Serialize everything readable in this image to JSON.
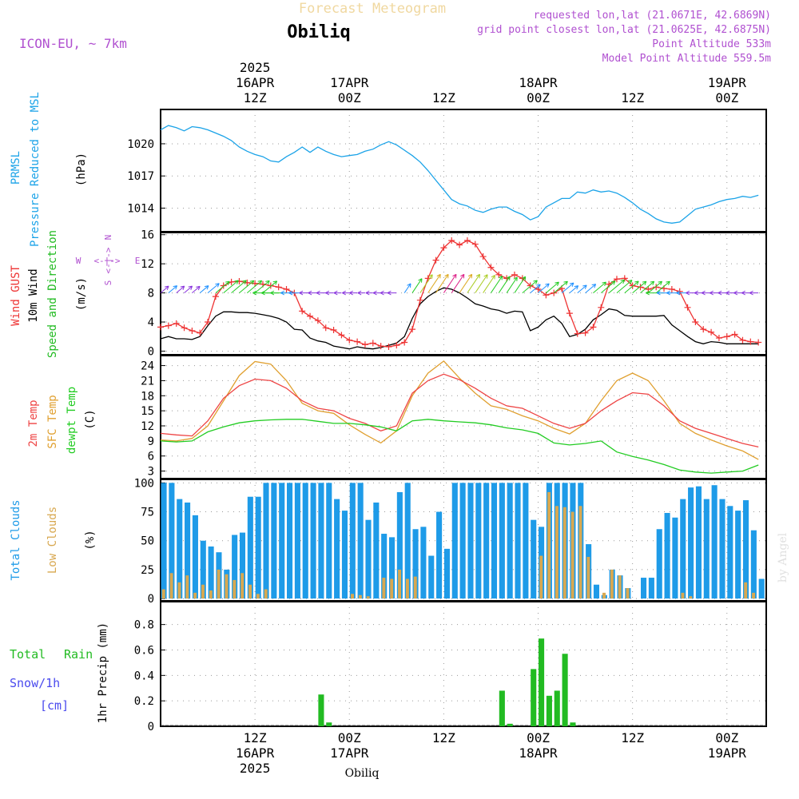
{
  "header": {
    "title": "Forecast Meteogram",
    "station": "Obiliq",
    "model": "ICON-EU, ~ 7km",
    "requested": "requested lon,lat (21.0671E, 42.6869N)",
    "gridpoint": "grid point closest lon,lat (21.0625E, 42.6875N)",
    "point_altitude": "Point Altitude 533m",
    "model_altitude": "Model Point Altitude 559.5m",
    "credit": "by Angel",
    "footer_station": "Obiliq"
  },
  "colors": {
    "pressure": "#1ba3e8",
    "wind_gust": "#ee3333",
    "wind_speed": "#000000",
    "temp": "#ee4444",
    "sfc_temp": "#e0a030",
    "dewpt": "#22cc22",
    "total_clouds": "#1e9be8",
    "low_clouds": "#d8a850",
    "rain": "#22bb22",
    "snow": "#4a4aee",
    "title": "#f0d8a0",
    "meta": "#b050d0"
  },
  "time_axis": {
    "top": [
      {
        "h": 12,
        "lines": [
          "2025",
          "16APR",
          "12Z"
        ]
      },
      {
        "h": 24,
        "lines": [
          "17APR",
          "00Z"
        ]
      },
      {
        "h": 36,
        "lines": [
          "12Z"
        ]
      },
      {
        "h": 48,
        "lines": [
          "18APR",
          "00Z"
        ]
      },
      {
        "h": 60,
        "lines": [
          "12Z"
        ]
      },
      {
        "h": 72,
        "lines": [
          "19APR",
          "00Z"
        ]
      }
    ],
    "bottom": [
      {
        "h": 12,
        "lines": [
          "12Z",
          "16APR",
          "2025"
        ]
      },
      {
        "h": 24,
        "lines": [
          "00Z",
          "17APR"
        ]
      },
      {
        "h": 36,
        "lines": [
          "12Z"
        ]
      },
      {
        "h": 48,
        "lines": [
          "00Z",
          "18APR"
        ]
      },
      {
        "h": 60,
        "lines": [
          "12Z"
        ]
      },
      {
        "h": 72,
        "lines": [
          "00Z",
          "19APR"
        ]
      }
    ],
    "note": "hours since 2025-04-16 00Z; axis spans 0 to 77"
  },
  "labels": {
    "pressure": [
      "PRMSL",
      "Pressure Reduced to MSL"
    ],
    "pressure_unit": "(hPa)",
    "wind": [
      "Wind GUST",
      "10m Wind",
      "Speed and Direction"
    ],
    "wind_unit": "(m/s)",
    "compass": {
      "n": "N",
      "s": "S",
      "w": "W",
      "e": "E",
      "arrows": "<-|->"
    },
    "temp": [
      "2m Temp",
      "SFC Temp",
      "dewpt Temp"
    ],
    "temp_unit": "(C)",
    "clouds": [
      "Total Clouds",
      "Low Clouds"
    ],
    "clouds_unit": "(%)",
    "precip_left": [
      "Total",
      "Rain",
      "Snow/1h",
      "[cm]"
    ],
    "precip_unit": "1hr Precip (mm)"
  },
  "chart_data": [
    {
      "id": "pressure",
      "type": "line",
      "title": "PRMSL Pressure Reduced to MSL",
      "ylabel": "hPa",
      "ylim": [
        1011.8,
        1023.2
      ],
      "yticks": [
        1014,
        1017,
        1020
      ],
      "series": [
        {
          "name": "PRMSL",
          "x": [
            0,
            1,
            2,
            3,
            4,
            5,
            6,
            7,
            8,
            9,
            10,
            11,
            12,
            13,
            14,
            15,
            16,
            17,
            18,
            19,
            20,
            21,
            22,
            23,
            24,
            25,
            26,
            27,
            28,
            29,
            30,
            31,
            32,
            33,
            34,
            35,
            36,
            37,
            38,
            39,
            40,
            41,
            42,
            43,
            44,
            45,
            46,
            47,
            48,
            49,
            50,
            51,
            52,
            53,
            54,
            55,
            56,
            57,
            58,
            59,
            60,
            61,
            62,
            63,
            64,
            65,
            66,
            67,
            68,
            69,
            70,
            71,
            72,
            73,
            74,
            75,
            76
          ],
          "values": [
            1021.3,
            1021.7,
            1021.5,
            1021.2,
            1021.6,
            1021.5,
            1021.3,
            1021.0,
            1020.7,
            1020.3,
            1019.7,
            1019.3,
            1019.0,
            1018.8,
            1018.4,
            1018.3,
            1018.8,
            1019.2,
            1019.7,
            1019.2,
            1019.7,
            1019.3,
            1019.0,
            1018.8,
            1018.9,
            1019.0,
            1019.3,
            1019.5,
            1019.9,
            1020.2,
            1019.9,
            1019.4,
            1018.9,
            1018.3,
            1017.5,
            1016.6,
            1015.7,
            1014.8,
            1014.4,
            1014.2,
            1013.8,
            1013.6,
            1013.9,
            1014.1,
            1014.1,
            1013.7,
            1013.4,
            1012.9,
            1013.2,
            1014.1,
            1014.5,
            1014.9,
            1014.9,
            1015.5,
            1015.4,
            1015.7,
            1015.5,
            1015.6,
            1015.4,
            1015.0,
            1014.5,
            1013.9,
            1013.5,
            1013.0,
            1012.7,
            1012.6,
            1012.7,
            1013.3,
            1013.9,
            1014.1,
            1014.3,
            1014.6,
            1014.8,
            1014.9,
            1015.1,
            1015.0,
            1015.2
          ]
        }
      ]
    },
    {
      "id": "wind",
      "type": "line",
      "title": "Wind GUST / 10m Wind Speed and Direction",
      "ylabel": "m/s",
      "ylim": [
        -0.5,
        16.3
      ],
      "yticks": [
        0,
        4,
        8,
        12,
        16
      ],
      "x": [
        0,
        1,
        2,
        3,
        4,
        5,
        6,
        7,
        8,
        9,
        10,
        11,
        12,
        13,
        14,
        15,
        16,
        17,
        18,
        19,
        20,
        21,
        22,
        23,
        24,
        25,
        26,
        27,
        28,
        29,
        30,
        31,
        32,
        33,
        34,
        35,
        36,
        37,
        38,
        39,
        40,
        41,
        42,
        43,
        44,
        45,
        46,
        47,
        48,
        49,
        50,
        51,
        52,
        53,
        54,
        55,
        56,
        57,
        58,
        59,
        60,
        61,
        62,
        63,
        64,
        65,
        66,
        67,
        68,
        69,
        70,
        71,
        72,
        73,
        74,
        75,
        76
      ],
      "series": [
        {
          "name": "Wind GUST",
          "values": [
            3.3,
            3.5,
            3.8,
            3.2,
            2.8,
            2.5,
            4.0,
            7.5,
            9.0,
            9.5,
            9.6,
            9.4,
            9.3,
            9.2,
            9.0,
            8.8,
            8.5,
            8.0,
            5.5,
            4.8,
            4.2,
            3.2,
            2.9,
            2.2,
            1.5,
            1.3,
            0.9,
            1.1,
            0.7,
            0.6,
            0.8,
            1.2,
            3.0,
            7.0,
            10.0,
            12.5,
            14.2,
            15.2,
            14.6,
            15.2,
            14.7,
            13.0,
            11.5,
            10.5,
            10.0,
            10.5,
            10.0,
            9.0,
            8.5,
            7.7,
            8.0,
            8.6,
            5.2,
            2.4,
            2.5,
            3.3,
            6.0,
            9.2,
            9.9,
            10.0,
            9.0,
            8.8,
            8.5,
            8.8,
            8.6,
            8.5,
            8.2,
            6.0,
            4.0,
            3.0,
            2.6,
            1.8,
            2.0,
            2.3,
            1.5,
            1.3,
            1.2
          ]
        },
        {
          "name": "10m Wind",
          "values": [
            1.7,
            2.0,
            1.7,
            1.7,
            1.6,
            2.0,
            3.5,
            4.8,
            5.4,
            5.4,
            5.3,
            5.3,
            5.2,
            5.0,
            4.8,
            4.5,
            4.0,
            3.0,
            2.9,
            1.8,
            1.4,
            1.2,
            0.7,
            0.5,
            0.3,
            0.6,
            0.4,
            0.3,
            0.5,
            0.8,
            1.1,
            2.0,
            4.5,
            6.5,
            7.5,
            8.2,
            8.7,
            8.5,
            8.0,
            7.3,
            6.5,
            6.2,
            5.8,
            5.6,
            5.2,
            5.5,
            5.4,
            2.8,
            3.3,
            4.3,
            4.8,
            3.8,
            2.0,
            2.3,
            3.0,
            4.3,
            5.0,
            5.8,
            5.6,
            4.9,
            4.8,
            4.8,
            4.8,
            4.8,
            4.9,
            3.6,
            2.8,
            2.0,
            1.3,
            1.0,
            1.3,
            1.2,
            1.0,
            1.0,
            1.0,
            1.0,
            1.0
          ]
        }
      ],
      "direction_arrows": "colored wind direction arrows plotted along the 8 m/s line"
    },
    {
      "id": "temp",
      "type": "line",
      "title": "2m Temp / SFC Temp / dewpt Temp",
      "ylabel": "C",
      "ylim": [
        1.5,
        26
      ],
      "yticks": [
        3,
        6,
        9,
        12,
        15,
        18,
        21,
        24
      ],
      "x": [
        0,
        2,
        4,
        6,
        8,
        10,
        12,
        14,
        16,
        18,
        20,
        22,
        24,
        26,
        28,
        30,
        32,
        34,
        36,
        38,
        40,
        42,
        44,
        46,
        48,
        50,
        52,
        54,
        56,
        58,
        60,
        62,
        64,
        66,
        68,
        70,
        72,
        74,
        76
      ],
      "series": [
        {
          "name": "2m Temp",
          "values": [
            10.5,
            10.2,
            10.0,
            13.0,
            17.5,
            20.0,
            21.3,
            21.0,
            19.5,
            17.0,
            15.5,
            15.0,
            13.5,
            12.5,
            11.0,
            12.0,
            18.5,
            21.0,
            22.3,
            21.2,
            19.5,
            17.5,
            16.0,
            15.5,
            14.0,
            12.5,
            11.5,
            12.5,
            15.0,
            17.0,
            18.6,
            18.3,
            16.0,
            13.0,
            11.5,
            10.5,
            9.5,
            8.5,
            7.8
          ]
        },
        {
          "name": "SFC Temp",
          "values": [
            9.2,
            9.0,
            9.5,
            12.0,
            17.0,
            22.0,
            24.8,
            24.3,
            21.0,
            16.5,
            15.0,
            14.5,
            12.2,
            10.3,
            8.6,
            11.0,
            18.0,
            22.5,
            24.9,
            21.5,
            18.5,
            16.0,
            15.3,
            14.0,
            13.0,
            11.5,
            10.4,
            12.5,
            17.0,
            21.0,
            22.5,
            21.0,
            17.0,
            12.5,
            10.5,
            9.2,
            8.0,
            7.0,
            5.3
          ]
        },
        {
          "name": "dewpt Temp",
          "values": [
            9.0,
            8.8,
            9.0,
            10.8,
            11.8,
            12.6,
            13.0,
            13.2,
            13.3,
            13.3,
            12.9,
            12.5,
            12.5,
            12.2,
            11.8,
            11.0,
            13.0,
            13.3,
            13.0,
            12.8,
            12.6,
            12.2,
            11.6,
            11.2,
            10.5,
            8.6,
            8.2,
            8.5,
            9.0,
            6.8,
            5.9,
            5.2,
            4.3,
            3.2,
            2.8,
            2.6,
            2.8,
            3.0,
            4.2
          ]
        }
      ]
    },
    {
      "id": "clouds",
      "type": "bar",
      "title": "Total Clouds / Low Clouds",
      "ylabel": "%",
      "ylim": [
        -2,
        103
      ],
      "yticks": [
        0,
        25,
        50,
        75,
        100
      ],
      "x": [
        0,
        1,
        2,
        3,
        4,
        5,
        6,
        7,
        8,
        9,
        10,
        11,
        12,
        13,
        14,
        15,
        16,
        17,
        18,
        19,
        20,
        21,
        22,
        23,
        24,
        25,
        26,
        27,
        28,
        29,
        30,
        31,
        32,
        33,
        34,
        35,
        36,
        37,
        38,
        39,
        40,
        41,
        42,
        43,
        44,
        45,
        46,
        47,
        48,
        49,
        50,
        51,
        52,
        53,
        54,
        55,
        56,
        57,
        58,
        59,
        60,
        61,
        62,
        63,
        64,
        65,
        66,
        67,
        68,
        69,
        70,
        71,
        72,
        73,
        74,
        75,
        76
      ],
      "series": [
        {
          "name": "Total Clouds",
          "values": [
            100,
            100,
            86,
            83,
            72,
            50,
            45,
            40,
            25,
            55,
            57,
            88,
            88,
            100,
            100,
            100,
            100,
            100,
            100,
            100,
            100,
            100,
            86,
            76,
            100,
            100,
            68,
            83,
            56,
            53,
            92,
            100,
            60,
            62,
            37,
            75,
            43,
            100,
            100,
            100,
            100,
            100,
            100,
            100,
            100,
            100,
            100,
            68,
            62,
            100,
            100,
            100,
            100,
            100,
            47,
            12,
            3,
            25,
            20,
            9,
            0,
            18,
            18,
            60,
            74,
            70,
            86,
            96,
            97,
            86,
            98,
            86,
            80,
            76,
            85,
            59,
            17
          ]
        },
        {
          "name": "Low Clouds",
          "values": [
            8,
            22,
            14,
            20,
            5,
            12,
            7,
            25,
            21,
            16,
            22,
            12,
            4,
            8,
            0,
            0,
            0,
            0,
            0,
            0,
            0,
            0,
            0,
            0,
            4,
            3,
            2,
            0,
            18,
            17,
            25,
            17,
            19,
            0,
            0,
            0,
            0,
            0,
            0,
            0,
            0,
            0,
            0,
            0,
            0,
            0,
            0,
            0,
            37,
            92,
            80,
            79,
            75,
            80,
            36,
            0,
            5,
            25,
            20,
            9,
            0,
            0,
            0,
            0,
            0,
            0,
            5,
            2,
            0,
            0,
            0,
            0,
            0,
            0,
            14,
            5,
            0
          ]
        }
      ]
    },
    {
      "id": "precip",
      "type": "bar",
      "title": "1hr Precip (mm)",
      "ylabel": "mm",
      "ylim": [
        0,
        0.98
      ],
      "yticks": [
        0,
        0.2,
        0.4,
        0.6,
        0.8
      ],
      "series": [
        {
          "name": "Total Rain",
          "x": [
            20,
            21,
            43,
            44,
            47,
            48,
            49,
            50,
            51,
            52
          ],
          "values": [
            0.25,
            0.03,
            0.28,
            0.02,
            0.45,
            0.69,
            0.24,
            0.28,
            0.57,
            0.03
          ]
        }
      ]
    }
  ]
}
